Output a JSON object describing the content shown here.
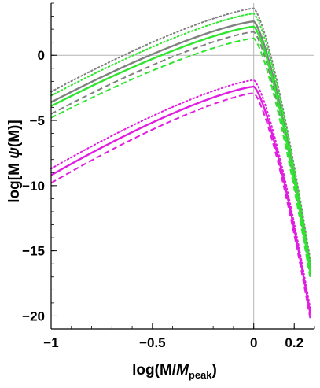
{
  "chart_data": {
    "type": "line",
    "title": "",
    "xlabel": {
      "main": "log(M/",
      "italic": "M",
      "sub": "peak",
      "close": ")"
    },
    "ylabel": {
      "main": "log[M ",
      "greek": "ψ",
      "close": "(M)]"
    },
    "xlim": [
      -1.0,
      0.3
    ],
    "ylim": [
      -21.0,
      4.0
    ],
    "x_ticks": [
      {
        "value": -1.0,
        "label": "-1"
      },
      {
        "value": -0.5,
        "label": "-0.5"
      },
      {
        "value": 0.0,
        "label": "0"
      },
      {
        "value": 0.2,
        "label": "0.2"
      }
    ],
    "y_ticks": [
      {
        "value": 0,
        "label": "0"
      },
      {
        "value": -5,
        "label": "-5"
      },
      {
        "value": -10,
        "label": "-10"
      },
      {
        "value": -15,
        "label": "-15"
      },
      {
        "value": -20,
        "label": "-20"
      }
    ],
    "reference_lines": {
      "x": 0,
      "y": 0
    },
    "colors": {
      "gray": "#808080",
      "green": "#2ee62e",
      "magenta": "#e11de1"
    },
    "series": [
      {
        "color": "gray",
        "style": "dotted",
        "peak": 3.6,
        "x": [
          -1.0,
          0.0,
          0.28
        ],
        "y": [
          -2.8,
          3.6,
          -15.8
        ]
      },
      {
        "color": "gray",
        "style": "solid",
        "peak": 2.6,
        "x": [
          -1.0,
          0.0,
          0.28
        ],
        "y": [
          -3.6,
          2.6,
          -16.5
        ]
      },
      {
        "color": "gray",
        "style": "dashed",
        "peak": 1.8,
        "x": [
          -1.0,
          0.0,
          0.28
        ],
        "y": [
          -4.5,
          1.8,
          -17.0
        ]
      },
      {
        "color": "green",
        "style": "dotted",
        "peak": 3.2,
        "x": [
          -1.0,
          0.0,
          0.28
        ],
        "y": [
          -3.1,
          3.2,
          -16.0
        ]
      },
      {
        "color": "green",
        "style": "solid",
        "peak": 2.2,
        "x": [
          -1.0,
          0.0,
          0.28
        ],
        "y": [
          -3.9,
          2.2,
          -16.7
        ]
      },
      {
        "color": "green",
        "style": "dashed",
        "peak": 1.3,
        "x": [
          -1.0,
          0.0,
          0.28
        ],
        "y": [
          -4.8,
          1.3,
          -17.2
        ]
      },
      {
        "color": "magenta",
        "style": "dotted",
        "peak": -1.9,
        "x": [
          -1.0,
          0.0,
          0.28
        ],
        "y": [
          -8.7,
          -1.9,
          -19.5
        ]
      },
      {
        "color": "magenta",
        "style": "solid",
        "peak": -2.4,
        "x": [
          -1.0,
          0.0,
          0.28
        ],
        "y": [
          -9.2,
          -2.4,
          -19.9
        ]
      },
      {
        "color": "magenta",
        "style": "dashed",
        "peak": -2.9,
        "x": [
          -1.0,
          0.0,
          0.28
        ],
        "y": [
          -9.8,
          -2.9,
          -20.3
        ]
      }
    ]
  }
}
